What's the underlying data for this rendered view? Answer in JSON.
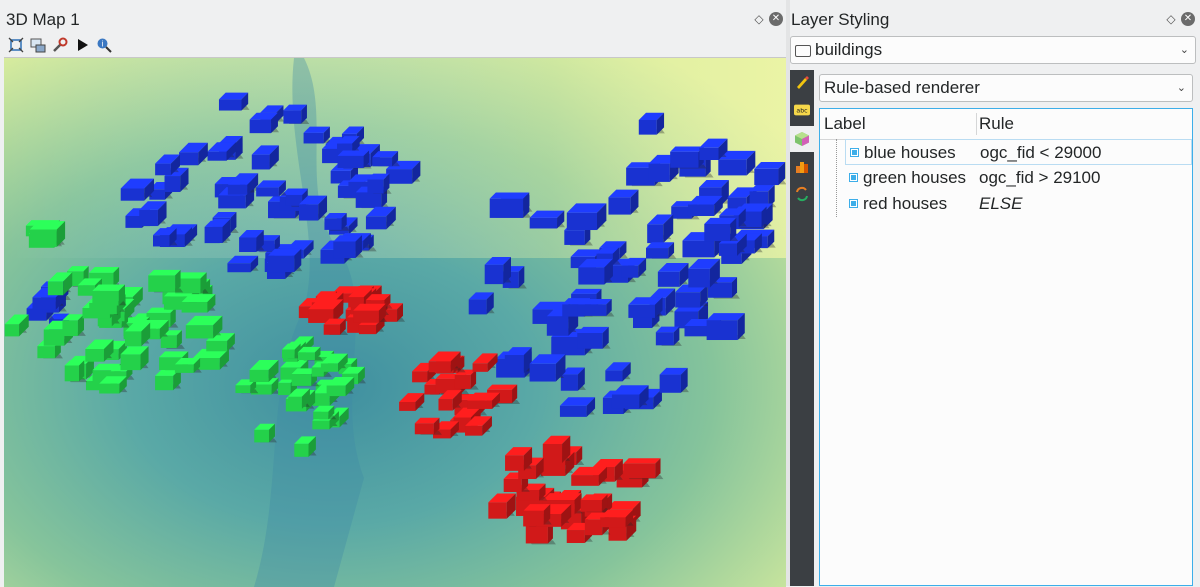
{
  "map_panel": {
    "title": "3D Map 1",
    "toolbar": [
      {
        "name": "zoom-full-icon"
      },
      {
        "name": "camera-control-icon"
      },
      {
        "name": "configure-icon"
      },
      {
        "name": "animation-play-icon"
      },
      {
        "name": "identify-icon"
      }
    ]
  },
  "styling_panel": {
    "title": "Layer Styling",
    "layer": "buildings",
    "renderer": "Rule-based renderer",
    "columns": {
      "label": "Label",
      "rule": "Rule"
    },
    "rules": [
      {
        "label": "blue houses",
        "rule": "ogc_fid < 29000",
        "checked": true
      },
      {
        "label": "green houses",
        "rule": "ogc_fid > 29100",
        "checked": true
      },
      {
        "label": "red houses",
        "rule": "ELSE",
        "checked": true
      }
    ],
    "side_tabs": [
      "symbology-icon",
      "labels-icon",
      "3d-view-icon",
      "diagrams-icon",
      "history-icon"
    ]
  },
  "colors": {
    "blue": "#1f3dff",
    "green": "#2cff5a",
    "red": "#ff1e1e",
    "accent": "#3daee9"
  }
}
